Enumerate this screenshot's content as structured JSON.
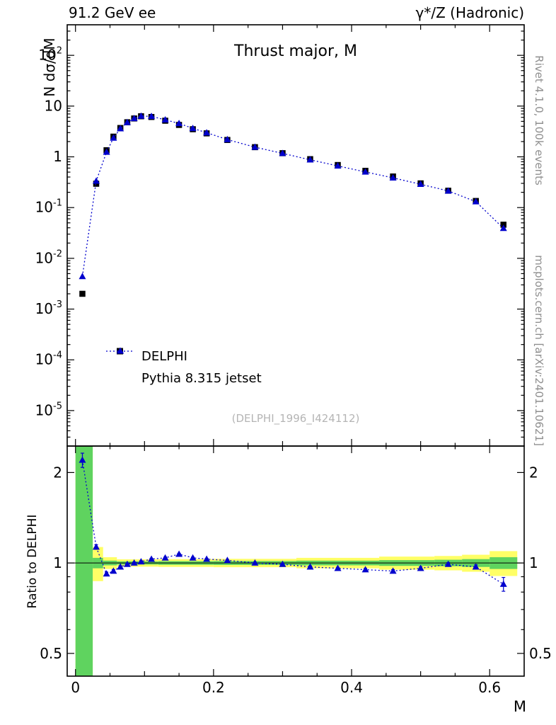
{
  "labels": {
    "header_left": "91.2 GeV ee",
    "header_right": "γ*/Z (Hadronic)",
    "title": "Thrust major, M",
    "ylabel": "N  dσ/dM",
    "ratio_label": "Ratio to DELPHI",
    "xlabel": "M",
    "watermark": "(DELPHI_1996_I424112)",
    "side_top": "Rivet 4.1.0,  100k events",
    "side_bottom": "mcplots.cern.ch [arXiv:2401.10621]"
  },
  "legend": [
    {
      "label": "DELPHI",
      "marker": "square",
      "color": "#000000"
    },
    {
      "label": "Pythia 8.315 jetset",
      "marker": "triangle",
      "color": "#0000cd",
      "line": "dotted"
    }
  ],
  "colors": {
    "data": "#000000",
    "mc": "#0000cd",
    "band_yellow": "#ffff66",
    "band_green": "#5fd35f",
    "frame": "#000000",
    "watermark": "#b5b5b5",
    "side_text": "#8f8f8f"
  },
  "chart_data": {
    "type": "scatter",
    "title": "Thrust major, M",
    "xlabel": "M",
    "ylabel": "N dσ/dM",
    "yscale_main": "log",
    "yscale_ratio": "log",
    "xlim": [
      -0.012,
      0.65
    ],
    "ylim_main": [
      2e-06,
      400
    ],
    "ylim_ratio": [
      0.42,
      2.45
    ],
    "x_ticks": [
      0,
      0.2,
      0.4,
      0.6
    ],
    "y_tick_exponents": [
      2,
      1,
      0,
      -1,
      -2,
      -3,
      -4,
      -5
    ],
    "ratio_ticks": [
      2,
      1,
      0.5
    ],
    "x": [
      0.01,
      0.03,
      0.045,
      0.055,
      0.065,
      0.075,
      0.085,
      0.095,
      0.11,
      0.13,
      0.15,
      0.17,
      0.19,
      0.22,
      0.26,
      0.3,
      0.34,
      0.38,
      0.42,
      0.46,
      0.5,
      0.54,
      0.58,
      0.62
    ],
    "series": [
      {
        "name": "DELPHI",
        "values": [
          0.002,
          0.295,
          1.35,
          2.5,
          3.7,
          4.8,
          5.7,
          6.3,
          6.1,
          5.15,
          4.25,
          3.5,
          2.9,
          2.15,
          1.55,
          1.18,
          0.9,
          0.69,
          0.53,
          0.41,
          0.3,
          0.215,
          0.135,
          0.046
        ]
      },
      {
        "name": "Pythia 8.315 jetset",
        "values": [
          0.0044,
          0.333,
          1.24,
          2.35,
          3.59,
          4.75,
          5.7,
          6.36,
          6.28,
          5.36,
          4.55,
          3.64,
          2.99,
          2.19,
          1.55,
          1.17,
          0.873,
          0.662,
          0.504,
          0.385,
          0.288,
          0.213,
          0.131,
          0.039
        ]
      }
    ],
    "ratio": {
      "name": "Pythia 8.315 jetset / DELPHI",
      "values": [
        2.2,
        1.13,
        0.92,
        0.94,
        0.97,
        0.99,
        1.0,
        1.01,
        1.03,
        1.04,
        1.07,
        1.04,
        1.03,
        1.02,
        1.0,
        0.99,
        0.97,
        0.96,
        0.95,
        0.94,
        0.96,
        0.99,
        0.97,
        0.85
      ],
      "errors": [
        0.12,
        0.02,
        0.012,
        0.01,
        0.009,
        0.008,
        0.007,
        0.007,
        0.006,
        0.006,
        0.006,
        0.006,
        0.006,
        0.006,
        0.006,
        0.007,
        0.007,
        0.008,
        0.009,
        0.01,
        0.011,
        0.013,
        0.016,
        0.045
      ]
    },
    "bands": [
      {
        "xlo": 0.0,
        "xhi": 0.025,
        "yellow": 3.0,
        "green": 3.0
      },
      {
        "xlo": 0.025,
        "xhi": 0.04,
        "yellow": 0.13,
        "green": 0.04
      },
      {
        "xlo": 0.04,
        "xhi": 0.06,
        "yellow": 0.045,
        "green": 0.018
      },
      {
        "xlo": 0.06,
        "xhi": 0.12,
        "yellow": 0.028,
        "green": 0.012
      },
      {
        "xlo": 0.12,
        "xhi": 0.2,
        "yellow": 0.03,
        "green": 0.014
      },
      {
        "xlo": 0.2,
        "xhi": 0.32,
        "yellow": 0.032,
        "green": 0.015
      },
      {
        "xlo": 0.32,
        "xhi": 0.44,
        "yellow": 0.04,
        "green": 0.018
      },
      {
        "xlo": 0.44,
        "xhi": 0.52,
        "yellow": 0.05,
        "green": 0.022
      },
      {
        "xlo": 0.52,
        "xhi": 0.56,
        "yellow": 0.055,
        "green": 0.025
      },
      {
        "xlo": 0.56,
        "xhi": 0.6,
        "yellow": 0.065,
        "green": 0.03
      },
      {
        "xlo": 0.6,
        "xhi": 0.64,
        "yellow": 0.095,
        "green": 0.045
      }
    ]
  }
}
